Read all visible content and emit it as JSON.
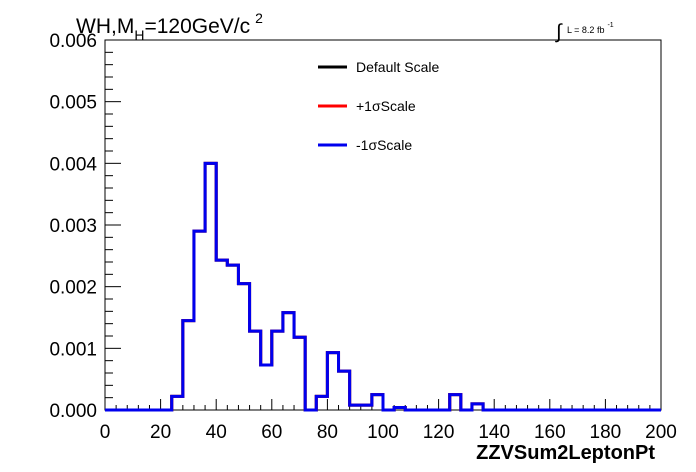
{
  "chart_data": {
    "type": "line",
    "title": "WH,M_{H}=120GeV/c^{2}",
    "title_parts": {
      "prefix": "WH,M",
      "sub": "H",
      "mid": "=120GeV/c",
      "sup": "2"
    },
    "lumi_label": {
      "integral": "∫",
      "text": "L = 8.2 fb",
      "sup": "-1"
    },
    "xlabel": "ZZVSum2LeptonPt",
    "ylabel": "",
    "xlim": [
      0,
      200
    ],
    "ylim": [
      0,
      0.006
    ],
    "x_ticks": [
      0,
      20,
      40,
      60,
      80,
      100,
      120,
      140,
      160,
      180,
      200
    ],
    "x_tick_labels": [
      "0",
      "20",
      "40",
      "60",
      "80",
      "100",
      "120",
      "140",
      "160",
      "180",
      "200"
    ],
    "y_ticks": [
      0,
      0.001,
      0.002,
      0.003,
      0.004,
      0.005,
      0.006
    ],
    "y_tick_labels": [
      "0.000",
      "0.001",
      "0.002",
      "0.003",
      "0.004",
      "0.005",
      "0.006"
    ],
    "grid": false,
    "legend_position": "top-center",
    "bin_edges": [
      0,
      4,
      8,
      12,
      16,
      20,
      24,
      28,
      32,
      36,
      40,
      44,
      48,
      52,
      56,
      60,
      64,
      68,
      72,
      76,
      80,
      84,
      88,
      92,
      96,
      100,
      104,
      108,
      112,
      116,
      120,
      124,
      128,
      132,
      136,
      140,
      144,
      148,
      152,
      156,
      160,
      164,
      168,
      172,
      176,
      180,
      184,
      188,
      192,
      196,
      200
    ],
    "series": [
      {
        "name": "Default Scale",
        "color": "#000000",
        "values": [
          0,
          0,
          0,
          0,
          0,
          0,
          0.00022,
          0.00145,
          0.0029,
          0.004,
          0.00243,
          0.00235,
          0.00205,
          0.00128,
          0.00073,
          0.00128,
          0.00158,
          0.00118,
          0,
          0.00022,
          0.00093,
          0.00063,
          8e-05,
          8e-05,
          0.00025,
          0,
          4e-05,
          0,
          0,
          0,
          0,
          0.00025,
          0,
          0.0001,
          0,
          0,
          0,
          0,
          0,
          0,
          0,
          0,
          0,
          0,
          0,
          0,
          0,
          0,
          0,
          0
        ]
      },
      {
        "name": "+1σScale",
        "color": "#ff0000",
        "values": [
          0,
          0,
          0,
          0,
          0,
          0,
          0.00022,
          0.00145,
          0.0029,
          0.004,
          0.00243,
          0.00235,
          0.00205,
          0.00128,
          0.00073,
          0.00128,
          0.00158,
          0.00118,
          0,
          0.00022,
          0.00093,
          0.00063,
          8e-05,
          8e-05,
          0.00025,
          0,
          4e-05,
          0,
          0,
          0,
          0,
          0.00025,
          0,
          0.0001,
          0,
          0,
          0,
          0,
          0,
          0,
          0,
          0,
          0,
          0,
          0,
          0,
          0,
          0,
          0,
          0
        ]
      },
      {
        "name": "-1σScale",
        "color": "#0000ee",
        "values": [
          0,
          0,
          0,
          0,
          0,
          0,
          0.00022,
          0.00145,
          0.0029,
          0.004,
          0.00243,
          0.00235,
          0.00205,
          0.00128,
          0.00073,
          0.00128,
          0.00158,
          0.00118,
          0,
          0.00022,
          0.00093,
          0.00063,
          8e-05,
          8e-05,
          0.00025,
          0,
          4e-05,
          0,
          0,
          0,
          0,
          0.00025,
          0,
          0.0001,
          0,
          0,
          0,
          0,
          0,
          0,
          0,
          0,
          0,
          0,
          0,
          0,
          0,
          0,
          0,
          0
        ]
      }
    ]
  }
}
